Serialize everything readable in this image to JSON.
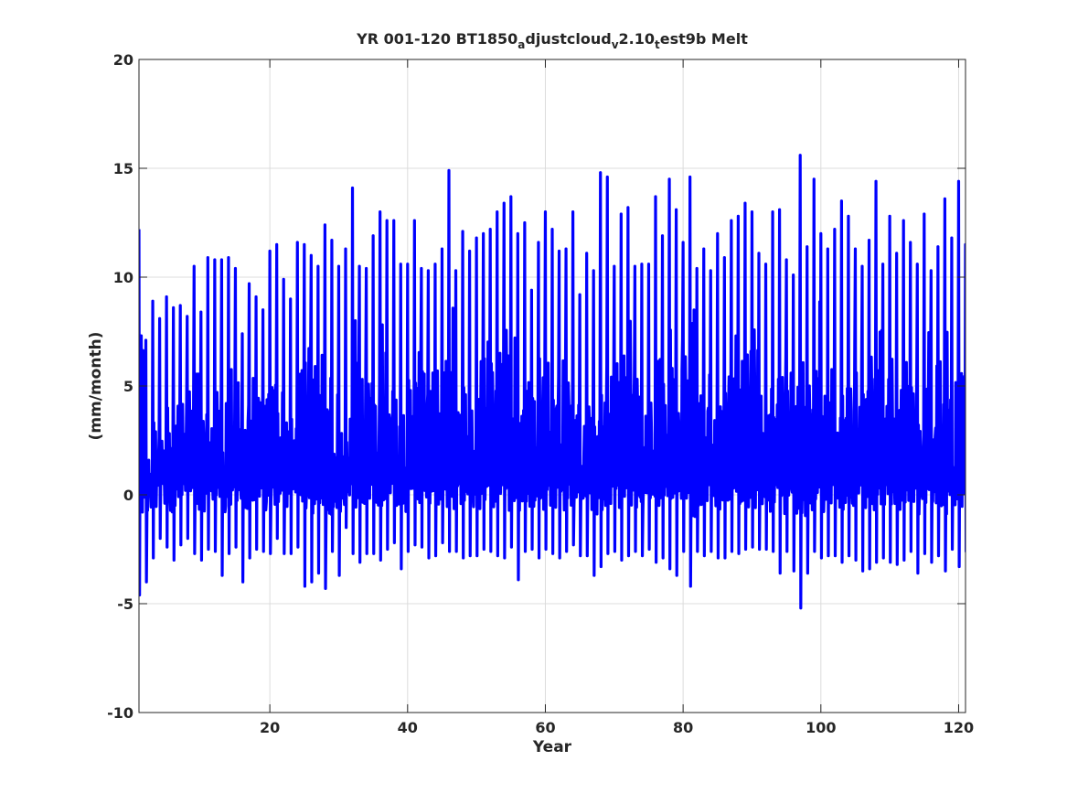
{
  "chart_data": {
    "type": "line",
    "title": {
      "parts": [
        {
          "text": "YR 001-120 BT1850",
          "sub": false
        },
        {
          "text": "a",
          "sub": true
        },
        {
          "text": "djustcloud",
          "sub": false
        },
        {
          "text": "v",
          "sub": true
        },
        {
          "text": "2.10",
          "sub": false
        },
        {
          "text": "t",
          "sub": true
        },
        {
          "text": "est9b Melt",
          "sub": false
        }
      ]
    },
    "xlabel": "Year",
    "ylabel": "(mm/month)",
    "xlim": [
      1,
      121
    ],
    "ylim": [
      -10,
      20
    ],
    "xticks": [
      20,
      40,
      60,
      80,
      100,
      120
    ],
    "yticks": [
      -10,
      -5,
      0,
      5,
      10,
      15,
      20
    ],
    "xtick_labels": [
      "20",
      "40",
      "60",
      "80",
      "100",
      "120"
    ],
    "ytick_labels": [
      "-10",
      "-5",
      "0",
      "5",
      "10",
      "15",
      "20"
    ],
    "grid": true,
    "line_color": "#0000ff",
    "annual_peaks": [
      12.2,
      7.1,
      8.9,
      8.1,
      9.1,
      8.6,
      8.7,
      8.2,
      10.5,
      8.4,
      10.9,
      10.8,
      10.8,
      10.9,
      10.4,
      7.4,
      9.7,
      9.1,
      8.5,
      11.2,
      11.5,
      9.9,
      9.0,
      11.6,
      11.5,
      11.0,
      10.5,
      12.4,
      11.7,
      10.5,
      11.3,
      14.1,
      10.5,
      10.4,
      11.9,
      13.0,
      12.6,
      12.6,
      10.6,
      10.6,
      12.6,
      10.4,
      10.3,
      10.6,
      11.3,
      14.9,
      10.3,
      12.1,
      11.2,
      11.8,
      12.0,
      12.2,
      13.0,
      13.4,
      13.7,
      12.0,
      12.5,
      9.4,
      11.6,
      13.0,
      12.2,
      11.2,
      11.3,
      13.0,
      9.2,
      11.1,
      10.3,
      14.8,
      14.6,
      10.5,
      12.9,
      13.2,
      10.5,
      10.6,
      10.6,
      13.7,
      11.9,
      14.5,
      13.1,
      11.6,
      14.6,
      10.4,
      11.3,
      10.3,
      12.0,
      10.9,
      12.6,
      12.8,
      13.4,
      13.0,
      11.1,
      10.6,
      13.0,
      13.1,
      10.8,
      10.1,
      15.6,
      11.4,
      14.5,
      12.0,
      11.3,
      12.2,
      13.5,
      12.8,
      11.3,
      10.5,
      11.7,
      14.4,
      10.6,
      12.8,
      11.1,
      12.6,
      11.6,
      10.6,
      12.9,
      10.3,
      11.4,
      13.6,
      11.8,
      14.4,
      11.5
    ],
    "annual_troughs": [
      -4.6,
      -4.0,
      -2.9,
      -2.0,
      -2.4,
      -3.0,
      -2.3,
      -2.0,
      -2.7,
      -3.0,
      -2.5,
      -2.6,
      -3.7,
      -2.7,
      -2.4,
      -4.0,
      -2.9,
      -2.5,
      -2.6,
      -2.7,
      -2.0,
      -2.7,
      -2.7,
      -2.4,
      -4.2,
      -4.0,
      -3.6,
      -4.3,
      -2.6,
      -3.7,
      -1.5,
      -2.7,
      -3.1,
      -2.7,
      -2.7,
      -3.0,
      -2.5,
      -2.2,
      -3.4,
      -2.6,
      -2.3,
      -2.4,
      -2.9,
      -2.8,
      -2.2,
      -2.6,
      -2.6,
      -2.9,
      -2.8,
      -2.8,
      -2.5,
      -2.6,
      -2.8,
      -2.9,
      -2.4,
      -3.9,
      -2.6,
      -2.5,
      -2.9,
      -2.5,
      -2.7,
      -2.9,
      -2.6,
      -2.3,
      -2.8,
      -2.8,
      -3.7,
      -3.3,
      -2.7,
      -2.6,
      -3.0,
      -2.8,
      -2.6,
      -2.8,
      -2.5,
      -3.1,
      -2.9,
      -3.4,
      -3.7,
      -2.6,
      -4.2,
      -2.6,
      -2.8,
      -2.6,
      -2.9,
      -2.9,
      -2.6,
      -2.7,
      -2.5,
      -2.4,
      -2.5,
      -2.5,
      -2.6,
      -3.6,
      -2.6,
      -3.5,
      -5.2,
      -3.6,
      -2.6,
      -2.9,
      -2.8,
      -2.8,
      -3.1,
      -2.8,
      -3.0,
      -3.5,
      -3.4,
      -3.1,
      -2.9,
      -3.1,
      -3.2,
      -3.0,
      -2.6,
      -3.6,
      -2.7,
      -3.1,
      -2.8,
      -3.5,
      -2.5,
      -3.3,
      -2.6
    ]
  }
}
